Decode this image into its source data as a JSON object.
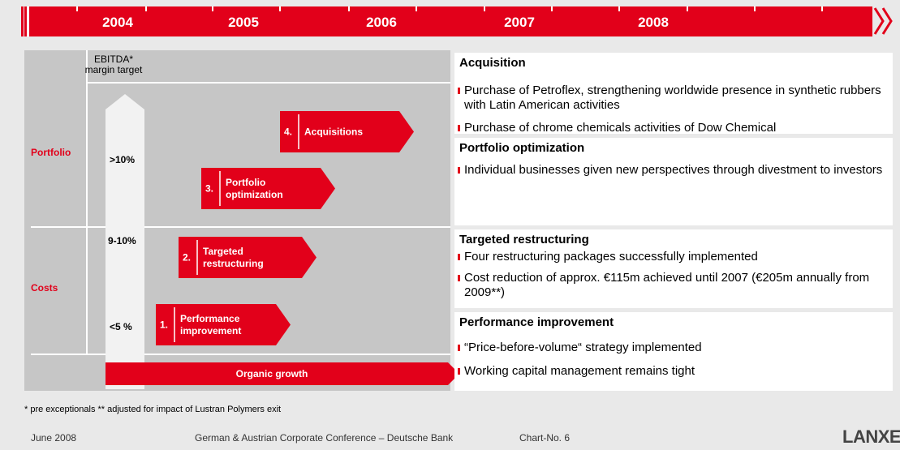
{
  "timeline": {
    "years": [
      "2004",
      "2005",
      "2006",
      "2007",
      "2008"
    ]
  },
  "left": {
    "ebitda_label": [
      "EBITDA*",
      "margin target"
    ],
    "rows": [
      "Portfolio",
      "Costs"
    ],
    "targets": [
      ">10%",
      "9-10%",
      "<5 %"
    ],
    "steps": [
      {
        "number": "4.",
        "label": [
          "Acquisitions"
        ]
      },
      {
        "number": "3.",
        "label": [
          "Portfolio",
          "optimization"
        ]
      },
      {
        "number": "2.",
        "label": [
          "Targeted",
          "restructuring"
        ]
      },
      {
        "number": "1.",
        "label": [
          "Performance",
          "improvement"
        ]
      }
    ],
    "organic": "Organic growth"
  },
  "right": [
    {
      "title": "Acquisition",
      "bullets": [
        "Purchase of Petroflex, strengthening worldwide presence in synthetic rubbers with Latin American activities",
        "Purchase of chrome chemicals activities of Dow Chemical"
      ]
    },
    {
      "title": "Portfolio optimization",
      "bullets": [
        "Individual businesses given new perspectives through divestment to investors"
      ]
    },
    {
      "title": "Targeted restructuring",
      "bullets": [
        "Four restructuring packages successfully implemented",
        "Cost reduction of approx. €115m achieved until 2007 (€205m annually from 2009**)"
      ]
    },
    {
      "title": "Performance improvement",
      "bullets": [
        "“Price-before-volume“ strategy implemented",
        "Working capital management remains tight"
      ]
    }
  ],
  "footnote": "* pre exceptionals   ** adjusted for impact of Lustran Polymers exit",
  "footer": {
    "date": "June 2008",
    "event": "German & Austrian Corporate Conference – Deutsche Bank",
    "chart_no": "Chart-No. 6",
    "logo": "LANXESS"
  }
}
